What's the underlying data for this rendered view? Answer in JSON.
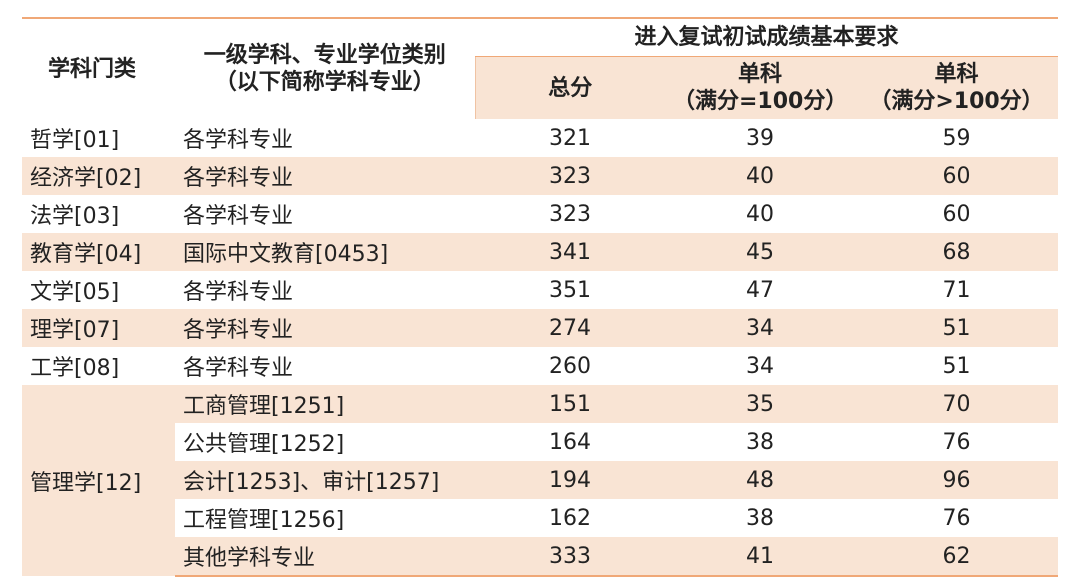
{
  "header": {
    "category": "学科门类",
    "subject_line1": "一级学科、专业学位类别",
    "subject_line2": "（以下简称学科专业）",
    "requirement": "进入复试初试成绩基本要求",
    "total": "总分",
    "single100": "单科",
    "single100_note": "（满分=100分）",
    "single_over100": "单科",
    "single_over100_note": "（满分>100分）"
  },
  "rows": [
    [
      "哲学[01]",
      "各学科专业",
      "321",
      "39",
      "59"
    ],
    [
      "经济学[02]",
      "各学科专业",
      "323",
      "40",
      "60"
    ],
    [
      "法学[03]",
      "各学科专业",
      "323",
      "40",
      "60"
    ],
    [
      "教育学[04]",
      "国际中文教育[0453]",
      "341",
      "45",
      "68"
    ],
    [
      "文学[05]",
      "各学科专业",
      "351",
      "47",
      "71"
    ],
    [
      "理学[07]",
      "各学科专业",
      "274",
      "34",
      "51"
    ],
    [
      "工学[08]",
      "各学科专业",
      "260",
      "34",
      "51"
    ]
  ],
  "group": {
    "category": "管理学[12]",
    "rows": [
      [
        "工商管理[1251]",
        "151",
        "35",
        "70"
      ],
      [
        "公共管理[1252]",
        "164",
        "38",
        "76"
      ],
      [
        "会计[1253]、审计[1257]",
        "194",
        "48",
        "96"
      ],
      [
        "工程管理[1256]",
        "162",
        "38",
        "76"
      ],
      [
        "其他学科专业",
        "333",
        "41",
        "62"
      ]
    ]
  }
}
